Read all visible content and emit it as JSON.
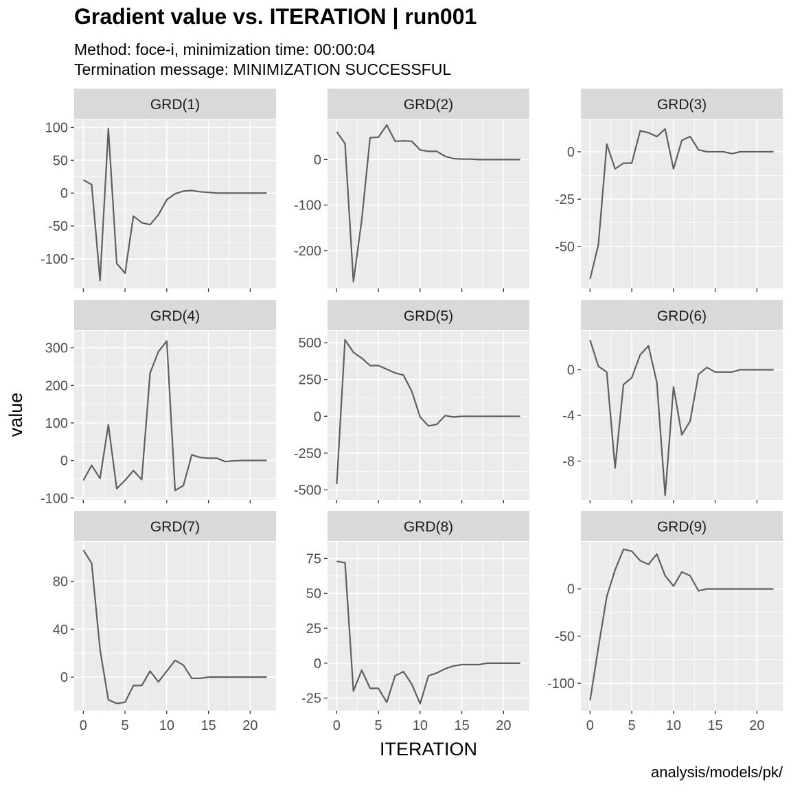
{
  "title": "Gradient value vs. ITERATION | run001",
  "subtitle_lines": [
    "Method: foce-i, minimization time: 00:00:04",
    "Termination message: MINIMIZATION SUCCESSFUL"
  ],
  "caption": "analysis/models/pk/",
  "colors": {
    "panel_bg": "#EBEBEB",
    "strip_bg": "#D9D9D9",
    "grid": "#FFFFFF",
    "line": "#5F5F5F",
    "tick": "#333333"
  },
  "chart_data": {
    "type": "line",
    "xlabel": "ITERATION",
    "ylabel": "value",
    "x": [
      0,
      1,
      2,
      3,
      4,
      5,
      6,
      7,
      8,
      9,
      10,
      11,
      12,
      13,
      14,
      15,
      16,
      17,
      18,
      19,
      20,
      21,
      22
    ],
    "x_ticks": [
      0,
      5,
      10,
      15,
      20
    ],
    "xlim": [
      -1.1,
      23.1
    ],
    "grid": true,
    "facets": [
      {
        "label": "GRD(1)",
        "ylim": [
          -145,
          112
        ],
        "y_ticks": [
          -100,
          -50,
          0,
          50,
          100
        ],
        "values": [
          20,
          13,
          -133,
          98,
          -107,
          -122,
          -35,
          -45,
          -48,
          -33,
          -10,
          -1,
          3,
          4,
          2,
          1,
          0,
          0,
          0,
          0,
          0,
          0,
          0
        ]
      },
      {
        "label": "GRD(2)",
        "ylim": [
          -283,
          88
        ],
        "y_ticks": [
          -200,
          -100,
          0
        ],
        "values": [
          61,
          35,
          -268,
          -133,
          48,
          49,
          76,
          40,
          41,
          40,
          21,
          18,
          18,
          7,
          2,
          1,
          1,
          0,
          0,
          0,
          0,
          0,
          0
        ]
      },
      {
        "label": "GRD(3)",
        "ylim": [
          -72,
          17
        ],
        "y_ticks": [
          -50,
          -25,
          0
        ],
        "values": [
          -67,
          -49,
          4,
          -9,
          -6,
          -6,
          11,
          10,
          8,
          12,
          -9,
          6,
          8,
          1,
          0,
          0,
          0,
          -1,
          0,
          0,
          0,
          0,
          0
        ]
      },
      {
        "label": "GRD(4)",
        "ylim": [
          -105,
          345
        ],
        "y_ticks": [
          -100,
          0,
          100,
          200,
          300
        ],
        "values": [
          -53,
          -13,
          -48,
          95,
          -75,
          -53,
          -27,
          -51,
          233,
          290,
          318,
          -80,
          -67,
          15,
          8,
          6,
          6,
          -3,
          -1,
          0,
          0,
          0,
          0
        ]
      },
      {
        "label": "GRD(5)",
        "ylim": [
          -568,
          580
        ],
        "y_ticks": [
          -500,
          -250,
          0,
          250,
          500
        ],
        "values": [
          -460,
          520,
          435,
          395,
          345,
          345,
          320,
          295,
          280,
          170,
          -5,
          -65,
          -55,
          5,
          -5,
          0,
          0,
          0,
          0,
          0,
          0,
          0,
          0
        ]
      },
      {
        "label": "GRD(6)",
        "ylim": [
          -11.4,
          3.4
        ],
        "y_ticks": [
          -8,
          -4,
          0
        ],
        "values": [
          2.6,
          0.3,
          -0.2,
          -8.6,
          -1.3,
          -0.7,
          1.3,
          2.1,
          -1.1,
          -11.0,
          -1.5,
          -5.7,
          -4.5,
          -0.4,
          0.2,
          -0.2,
          -0.2,
          -0.2,
          0,
          0,
          0,
          0,
          0
        ]
      },
      {
        "label": "GRD(7)",
        "ylim": [
          -28,
          113
        ],
        "y_ticks": [
          0,
          40,
          80
        ],
        "values": [
          106,
          95,
          23,
          -19,
          -22,
          -21,
          -7,
          -7,
          5,
          -4,
          5,
          14,
          10,
          -1,
          -1,
          0,
          0,
          0,
          0,
          0,
          0,
          0,
          0
        ]
      },
      {
        "label": "GRD(8)",
        "ylim": [
          -34,
          87
        ],
        "y_ticks": [
          -25,
          0,
          25,
          50,
          75
        ],
        "values": [
          73,
          72,
          -20,
          -5,
          -18,
          -18,
          -28,
          -9,
          -6,
          -15,
          -29,
          -9,
          -7,
          -4,
          -2,
          -1,
          -1,
          -1,
          0,
          0,
          0,
          0,
          0
        ]
      },
      {
        "label": "GRD(9)",
        "ylim": [
          -129,
          50
        ],
        "y_ticks": [
          -100,
          -50,
          0
        ],
        "values": [
          -118,
          -62,
          -8,
          20,
          42,
          40,
          30,
          26,
          37,
          14,
          3,
          18,
          14,
          -2,
          0,
          0,
          0,
          0,
          0,
          0,
          0,
          0,
          0
        ]
      }
    ]
  }
}
